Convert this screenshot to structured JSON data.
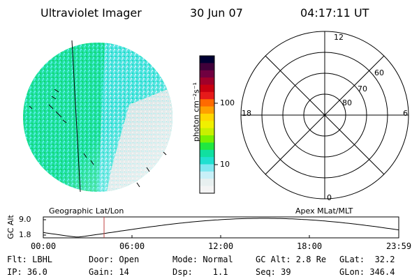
{
  "header": {
    "title": "Ultraviolet Imager",
    "date": "30 Jun 07",
    "time": "04:17:11 UT"
  },
  "colorbar": {
    "unit_label": "photon cm⁻²s⁻¹",
    "ticks": [
      "100",
      "10"
    ],
    "colors": [
      "#000033",
      "#40003a",
      "#700040",
      "#a0002a",
      "#c80010",
      "#e61a1a",
      "#ff6a00",
      "#ffa000",
      "#ffd700",
      "#f0f000",
      "#c8f000",
      "#78f000",
      "#20e840",
      "#10e0a0",
      "#20e0d0",
      "#80e8f0",
      "#c8f0f8",
      "#e8f0f0",
      "#f4f4f4"
    ]
  },
  "polar": {
    "mlt_labels": {
      "top": "12",
      "left": "18",
      "right": "6",
      "bottom": "0"
    },
    "lat_labels": [
      "60",
      "70",
      "80"
    ]
  },
  "timeline": {
    "left_caption": "Geographic Lat/Lon",
    "right_caption": "Apex MLat/MLT",
    "y_axis_label": "GC Alt",
    "y_ticks": [
      "9.0",
      "1.8"
    ],
    "x_ticks": [
      "00:00",
      "06:00",
      "12:00",
      "18:00",
      "23:59"
    ]
  },
  "status": {
    "flt": "Flt: LBHL",
    "ip": "IP: 36.0",
    "door": "Door: Open",
    "gain": "Gain: 14",
    "mode": "Mode: Normal",
    "dsp": "Dsp:    1.1",
    "gcalt": "GC Alt: 2.8 Re",
    "seq": "Seq: 39",
    "glat": "GLat:  32.2",
    "glon": "GLon: 346.4"
  },
  "colors": {
    "disk_primary": "#20e0a0",
    "disk_secondary": "#40e8e0",
    "disk_faded": "#d8e8e8",
    "current_time_marker": "#c04040"
  }
}
